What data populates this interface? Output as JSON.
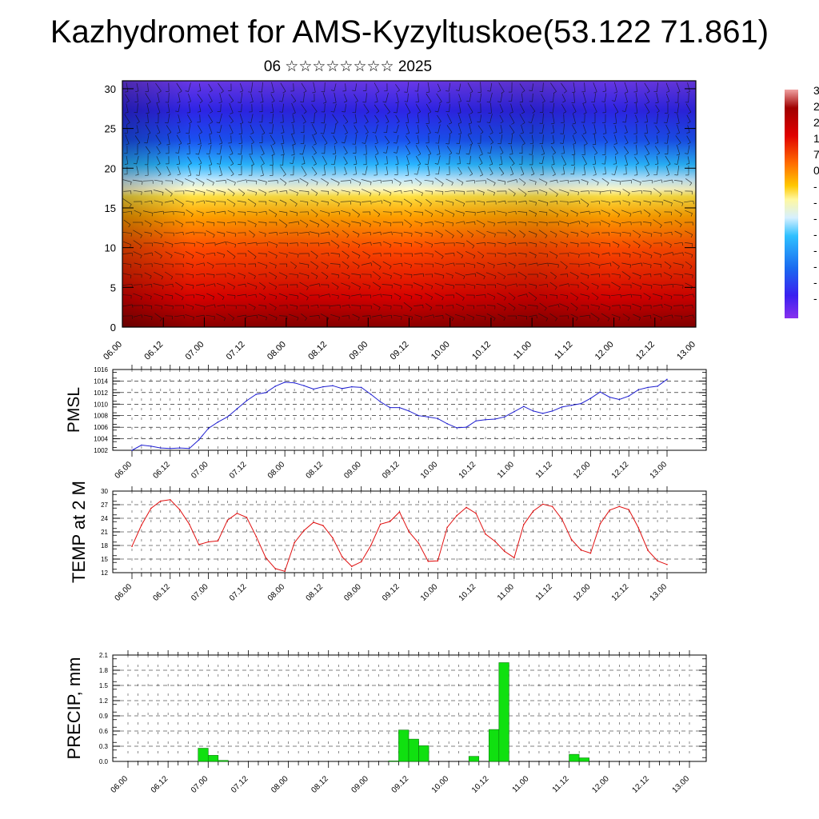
{
  "page": {
    "title": "Kazhydromet for AMS-Kyzyltuskoe(53.122 71.861)",
    "subtitle": "06 ☆☆☆☆☆☆☆☆ 2025"
  },
  "colors": {
    "pmsl_line": "#1f1fd0",
    "temp_line": "#e01010",
    "precip_bar": "#10e010",
    "precip_edge": "#0a7a0a"
  },
  "chart_data": [
    {
      "type": "heatmap",
      "name": "vertical-profile",
      "yticks": [
        "0",
        "5",
        "10",
        "15",
        "20",
        "25",
        "30"
      ],
      "ylim": [
        0,
        31
      ],
      "xticks": [
        "06.00",
        "06.12",
        "07.00",
        "07.12",
        "08.00",
        "08.12",
        "09.00",
        "09.12",
        "10.00",
        "10.12",
        "11.00",
        "11.12",
        "12.00",
        "12.12",
        "13.00"
      ],
      "colorbar_labels": [
        "3",
        "2",
        "2",
        "1",
        "7",
        "0",
        "-",
        "-",
        "-",
        "-",
        "-",
        "-",
        "-",
        "-"
      ],
      "wind_barbs": true
    },
    {
      "type": "line",
      "name": "pmsl",
      "ylabel": "PMSL",
      "ylim": [
        1002,
        1016
      ],
      "yticks": [
        "1002",
        "1004",
        "1006",
        "1008",
        "1010",
        "1012",
        "1014",
        "1016"
      ],
      "xticks": [
        "06.00",
        "06.12",
        "07.00",
        "07.12",
        "08.00",
        "08.12",
        "09.00",
        "09.12",
        "10.00",
        "10.12",
        "11.00",
        "11.12",
        "12.00",
        "12.12",
        "13.00"
      ],
      "x_step_hours": 3,
      "values": [
        1002.0,
        1002.9,
        1002.7,
        1002.4,
        1002.3,
        1002.4,
        1002.3,
        1003.8,
        1005.8,
        1006.9,
        1007.8,
        1009.2,
        1010.6,
        1011.7,
        1012.0,
        1013.1,
        1013.8,
        1013.7,
        1013.2,
        1012.6,
        1013.0,
        1013.2,
        1012.7,
        1013.0,
        1012.9,
        1011.7,
        1010.4,
        1009.4,
        1009.4,
        1008.8,
        1008.0,
        1007.8,
        1007.5,
        1006.6,
        1005.9,
        1006.0,
        1007.1,
        1007.3,
        1007.4,
        1007.8,
        1008.7,
        1009.6,
        1008.8,
        1008.4,
        1008.8,
        1009.5,
        1009.8,
        1010.1,
        1011.0,
        1012.1,
        1011.2,
        1010.8,
        1011.4,
        1012.5,
        1012.9,
        1013.1,
        1014.3
      ]
    },
    {
      "type": "line",
      "name": "temp",
      "ylabel": "TEMP at 2 M",
      "ylim": [
        12,
        30
      ],
      "yticks": [
        "12",
        "15",
        "18",
        "21",
        "24",
        "27",
        "30"
      ],
      "xticks": [
        "06.00",
        "06.12",
        "07.00",
        "07.12",
        "08.00",
        "08.12",
        "09.00",
        "09.12",
        "10.00",
        "10.12",
        "11.00",
        "11.12",
        "12.00",
        "12.12",
        "13.00"
      ],
      "x_step_hours": 3,
      "values": [
        17.8,
        22.5,
        26.2,
        27.8,
        28.1,
        25.9,
        22.7,
        18.2,
        18.8,
        19.0,
        23.6,
        25.1,
        24.2,
        20.0,
        15.3,
        12.9,
        12.3,
        18.6,
        21.3,
        23.1,
        22.4,
        19.7,
        15.5,
        13.4,
        14.4,
        18.0,
        22.7,
        23.3,
        25.4,
        21.0,
        18.5,
        14.5,
        14.6,
        22.0,
        24.6,
        26.4,
        25.1,
        20.5,
        18.9,
        16.7,
        15.3,
        22.6,
        25.6,
        27.1,
        26.6,
        23.8,
        19.3,
        17.0,
        16.3,
        22.8,
        25.8,
        26.6,
        25.9,
        21.9,
        16.9,
        14.6,
        13.8
      ]
    },
    {
      "type": "bar",
      "name": "precip",
      "ylabel": "PRECIP, mm",
      "ylim": [
        0,
        2.1
      ],
      "yticks": [
        "0.0",
        "0.3",
        "0.6",
        "0.9",
        "1.2",
        "1.5",
        "1.8",
        "2.1"
      ],
      "xticks": [
        "06.00",
        "06.12",
        "07.00",
        "07.12",
        "08.00",
        "08.12",
        "09.00",
        "09.12",
        "10.00",
        "10.12",
        "11.00",
        "11.12",
        "12.00",
        "12.12",
        "13.00"
      ],
      "x_step_hours": 3,
      "values": [
        0,
        0,
        0,
        0,
        0,
        0,
        0,
        0.26,
        0.12,
        0.02,
        0,
        0,
        0,
        0,
        0,
        0,
        0,
        0,
        0,
        0,
        0,
        0,
        0,
        0,
        0,
        0,
        0.01,
        0.62,
        0.44,
        0.31,
        0,
        0,
        0,
        0,
        0.1,
        0,
        0.63,
        1.95,
        0,
        0,
        0,
        0,
        0,
        0,
        0.14,
        0.07,
        0,
        0,
        0,
        0,
        0,
        0,
        0,
        0,
        0,
        0,
        0
      ]
    }
  ]
}
